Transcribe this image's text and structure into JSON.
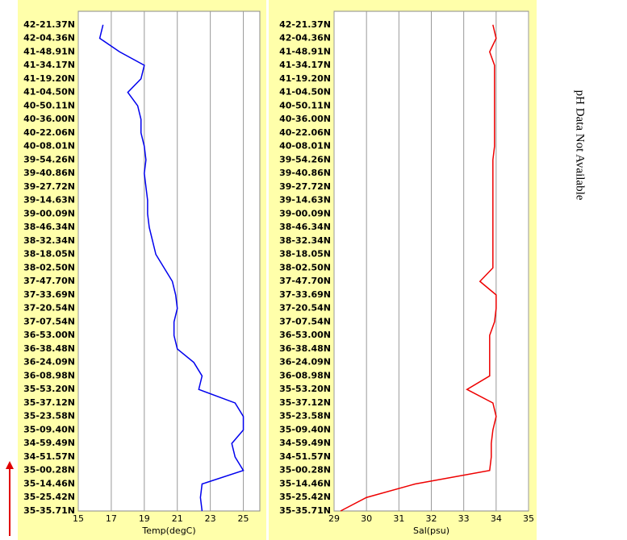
{
  "chart_data": [
    {
      "type": "line",
      "xlabel": "Temp(degC)",
      "orientation": "horizontal",
      "categories": [
        "42-21.37N",
        "42-04.36N",
        "41-48.91N",
        "41-34.17N",
        "41-19.20N",
        "41-04.50N",
        "40-50.11N",
        "40-36.00N",
        "40-22.06N",
        "40-08.01N",
        "39-54.26N",
        "39-40.86N",
        "39-27.72N",
        "39-14.63N",
        "39-00.09N",
        "38-46.34N",
        "38-32.34N",
        "38-18.05N",
        "38-02.50N",
        "37-47.70N",
        "37-33.69N",
        "37-20.54N",
        "37-07.54N",
        "36-53.00N",
        "36-38.48N",
        "36-24.09N",
        "36-08.98N",
        "35-53.20N",
        "35-37.12N",
        "35-23.58N",
        "35-09.40N",
        "34-59.49N",
        "34-51.57N",
        "35-00.28N",
        "35-14.46N",
        "35-25.42N",
        "35-35.71N"
      ],
      "series": [
        {
          "color": "#0000ee",
          "values": [
            16.5,
            16.3,
            17.5,
            19.0,
            18.8,
            18.0,
            18.6,
            18.8,
            18.8,
            19.0,
            19.1,
            19.0,
            19.1,
            19.2,
            19.2,
            19.3,
            19.5,
            19.7,
            20.2,
            20.7,
            20.9,
            21.0,
            20.8,
            20.8,
            21.0,
            22.0,
            22.5,
            22.3,
            24.5,
            25.0,
            25.0,
            24.3,
            24.5,
            25.0,
            22.5,
            22.4,
            22.5
          ]
        }
      ],
      "xlim": [
        15,
        26
      ],
      "xticks": [
        15,
        17,
        19,
        21,
        23,
        25
      ],
      "grid": true
    },
    {
      "type": "line",
      "xlabel": "Sal(psu)",
      "orientation": "horizontal",
      "categories": [
        "42-21.37N",
        "42-04.36N",
        "41-48.91N",
        "41-34.17N",
        "41-19.20N",
        "41-04.50N",
        "40-50.11N",
        "40-36.00N",
        "40-22.06N",
        "40-08.01N",
        "39-54.26N",
        "39-40.86N",
        "39-27.72N",
        "39-14.63N",
        "39-00.09N",
        "38-46.34N",
        "38-32.34N",
        "38-18.05N",
        "38-02.50N",
        "37-47.70N",
        "37-33.69N",
        "37-20.54N",
        "37-07.54N",
        "36-53.00N",
        "36-38.48N",
        "36-24.09N",
        "36-08.98N",
        "35-53.20N",
        "35-37.12N",
        "35-23.58N",
        "35-09.40N",
        "34-59.49N",
        "34-51.57N",
        "35-00.28N",
        "35-14.46N",
        "35-25.42N",
        "35-35.71N"
      ],
      "series": [
        {
          "color": "#ee0000",
          "values": [
            33.9,
            34.0,
            33.8,
            33.95,
            33.95,
            33.95,
            33.95,
            33.95,
            33.95,
            33.95,
            33.9,
            33.9,
            33.9,
            33.9,
            33.9,
            33.9,
            33.9,
            33.9,
            33.9,
            33.5,
            34.0,
            34.0,
            33.95,
            33.8,
            33.8,
            33.8,
            33.8,
            33.1,
            33.9,
            34.0,
            33.9,
            33.85,
            33.85,
            33.8,
            31.5,
            30.0,
            29.2
          ]
        }
      ],
      "xlim": [
        29,
        35
      ],
      "xticks": [
        29,
        30,
        31,
        32,
        33,
        34,
        35
      ],
      "grid": true
    }
  ],
  "message": "pH Data Not Available"
}
